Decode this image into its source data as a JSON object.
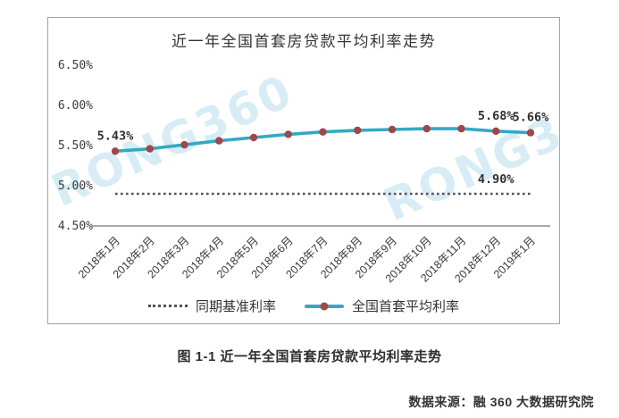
{
  "chart": {
    "title": "近一年全国首套房贷款平均利率走势",
    "caption": "图 1-1 近一年全国首套房贷款平均利率走势",
    "source": "数据来源：融 360 大数据研究院",
    "watermark": "RONG360",
    "legend": [
      {
        "label": "同期基准利率",
        "style": "dotted"
      },
      {
        "label": "全国首套平均利率",
        "style": "line-marker"
      }
    ],
    "colors": {
      "series_line": "#35a9c4",
      "series_marker": "#a04747",
      "baseline_dotted": "#50525b",
      "axis": "#8c8c8c",
      "text": "#3a3a3a",
      "border": "#a3a3a3",
      "watermark": "#cfe8f3"
    }
  },
  "chart_data": {
    "type": "line",
    "title": "近一年全国首套房贷款平均利率走势",
    "categories": [
      "2018年1月",
      "2018年2月",
      "2018年3月",
      "2018年4月",
      "2018年5月",
      "2018年6月",
      "2018年7月",
      "2018年8月",
      "2018年9月",
      "2018年10月",
      "2018年11月",
      "2018年12月",
      "2019年1月"
    ],
    "series": [
      {
        "name": "全国首套平均利率",
        "type": "line",
        "values": [
          5.43,
          5.46,
          5.51,
          5.56,
          5.6,
          5.64,
          5.67,
          5.69,
          5.7,
          5.71,
          5.71,
          5.68,
          5.66
        ]
      },
      {
        "name": "同期基准利率",
        "type": "constant-dotted",
        "value": 4.9
      }
    ],
    "annotations": [
      {
        "text": "5.43%",
        "index": 0,
        "series": 0
      },
      {
        "text": "5.68%",
        "index": 11,
        "series": 0
      },
      {
        "text": "5.66%",
        "index": 12,
        "series": 0
      },
      {
        "text": "4.90%",
        "index": 11,
        "series": 1
      }
    ],
    "y_ticks": [
      "6.50%",
      "6.00%",
      "5.50%",
      "5.00%",
      "4.50%"
    ],
    "ylim": [
      4.5,
      6.5
    ],
    "xlabel": "",
    "ylabel": "",
    "grid": false,
    "legend_position": "bottom"
  }
}
